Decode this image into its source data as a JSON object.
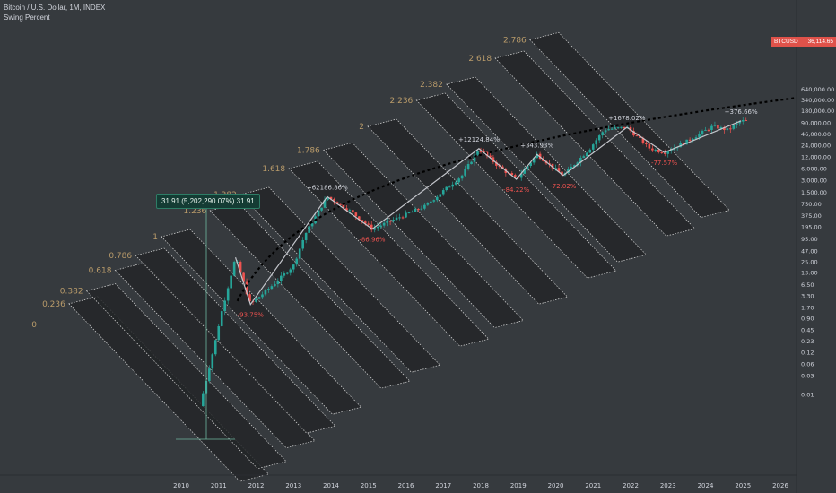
{
  "header": {
    "symbol": "Bitcoin / U.S. Dollar, 1M, INDEX",
    "indicator": "Swing Percent"
  },
  "price_tag": {
    "ticker": "BTCUSD",
    "value": "36,114.65"
  },
  "measure_label": "31.91 (5,202,290.07%) 31.91",
  "colors": {
    "up": "#26a69a",
    "down": "#ef5350",
    "fib_text": "#b99b6a",
    "band": "#232628",
    "swing_line": "#b2b5be",
    "curve": "#000000"
  },
  "chart_data": {
    "type": "candlestick",
    "title": "Bitcoin / U.S. Dollar, 1M, INDEX",
    "yscale": "log",
    "x_ticks": [
      "2010",
      "2011",
      "2012",
      "2013",
      "2014",
      "2015",
      "2016",
      "2017",
      "2018",
      "2019",
      "2020",
      "2021",
      "2022",
      "2023",
      "2024",
      "2025",
      "2026"
    ],
    "y_ticks": [
      "640,000.00",
      "340,000.00",
      "180,000.00",
      "90,000.00",
      "46,000.00",
      "24,000.00",
      "12,000.00",
      "6,000.00",
      "3,000.00",
      "1,500.00",
      "750.00",
      "375.00",
      "195.00",
      "95.00",
      "47.00",
      "25.00",
      "13.00",
      "6.50",
      "3.30",
      "1.70",
      "0.90",
      "0.45",
      "0.23",
      "0.12",
      "0.06",
      "0.03",
      "0.01"
    ],
    "fib_levels": [
      "0",
      "0.236",
      "0.382",
      "0.618",
      "0.786",
      "1",
      "1.236",
      "1.382",
      "1.618",
      "1.786",
      "2",
      "2.236",
      "2.382",
      "2.618",
      "2.786"
    ],
    "swing_labels": [
      {
        "text": "+62186.86%",
        "dir": "up"
      },
      {
        "text": "-93.75%",
        "dir": "down"
      },
      {
        "text": "-86.96%",
        "dir": "down"
      },
      {
        "text": "+12124.84%",
        "dir": "up"
      },
      {
        "text": "-84.22%",
        "dir": "down"
      },
      {
        "text": "+343.93%",
        "dir": "up"
      },
      {
        "text": "-72.02%",
        "dir": "down"
      },
      {
        "text": "+1678.02%",
        "dir": "up"
      },
      {
        "text": "-77.57%",
        "dir": "down"
      },
      {
        "text": "+376.66%",
        "dir": "up"
      }
    ],
    "series": [
      {
        "name": "price",
        "points": [
          {
            "t": 2010.5,
            "v": 0.005
          },
          {
            "t": 2010.9,
            "v": 0.2
          },
          {
            "t": 2011.05,
            "v": 1.0
          },
          {
            "t": 2011.45,
            "v": 31.91
          },
          {
            "t": 2011.85,
            "v": 2.0
          },
          {
            "t": 2012.5,
            "v": 7.0
          },
          {
            "t": 2013.0,
            "v": 20.0
          },
          {
            "t": 2013.3,
            "v": 120.0
          },
          {
            "t": 2013.9,
            "v": 1150.0
          },
          {
            "t": 2014.5,
            "v": 500.0
          },
          {
            "t": 2015.1,
            "v": 170.0
          },
          {
            "t": 2015.5,
            "v": 250.0
          },
          {
            "t": 2016.5,
            "v": 650.0
          },
          {
            "t": 2017.5,
            "v": 4000.0
          },
          {
            "t": 2017.95,
            "v": 19500.0
          },
          {
            "t": 2018.5,
            "v": 6500.0
          },
          {
            "t": 2018.95,
            "v": 3200.0
          },
          {
            "t": 2019.5,
            "v": 13800.0
          },
          {
            "t": 2020.2,
            "v": 4000.0
          },
          {
            "t": 2020.9,
            "v": 19000.0
          },
          {
            "t": 2021.3,
            "v": 60000.0
          },
          {
            "t": 2021.9,
            "v": 68000.0
          },
          {
            "t": 2022.5,
            "v": 20000.0
          },
          {
            "t": 2022.9,
            "v": 15500.0
          },
          {
            "t": 2023.5,
            "v": 30000.0
          },
          {
            "t": 2024.2,
            "v": 73000.0
          },
          {
            "t": 2024.6,
            "v": 58000.0
          },
          {
            "t": 2024.95,
            "v": 100000.0
          },
          {
            "t": 2025.1,
            "v": 98000.0
          }
        ]
      }
    ]
  }
}
